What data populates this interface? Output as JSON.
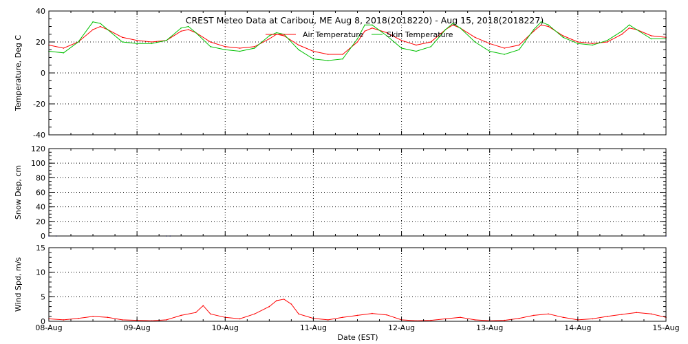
{
  "chart_data": [
    {
      "type": "line",
      "title": "CREST Meteo Data at Caribou, ME   Aug  8, 2018(2018220) - Aug 15, 2018(2018227)",
      "ylabel": "Temperature, Deg C",
      "ylim": [
        -40,
        40
      ],
      "yticks": [
        "40",
        "20",
        "0",
        "-20",
        "-40"
      ],
      "xlim": [
        "2018-08-08",
        "2018-08-15"
      ],
      "grid": true,
      "legend_position": "top-center",
      "series": [
        {
          "name": "Air Temperature",
          "color": "#ff0000",
          "x": [
            "08-Aug 00:00",
            "08-Aug 04:00",
            "08-Aug 08:00",
            "08-Aug 12:00",
            "08-Aug 14:00",
            "08-Aug 16:00",
            "08-Aug 20:00",
            "09-Aug 00:00",
            "09-Aug 04:00",
            "09-Aug 08:00",
            "09-Aug 12:00",
            "09-Aug 14:00",
            "09-Aug 16:00",
            "09-Aug 20:00",
            "10-Aug 00:00",
            "10-Aug 04:00",
            "10-Aug 08:00",
            "10-Aug 12:00",
            "10-Aug 14:00",
            "10-Aug 16:00",
            "10-Aug 20:00",
            "11-Aug 00:00",
            "11-Aug 04:00",
            "11-Aug 08:00",
            "11-Aug 12:00",
            "11-Aug 14:00",
            "11-Aug 16:00",
            "11-Aug 20:00",
            "12-Aug 00:00",
            "12-Aug 04:00",
            "12-Aug 08:00",
            "12-Aug 12:00",
            "12-Aug 14:00",
            "12-Aug 16:00",
            "12-Aug 20:00",
            "13-Aug 00:00",
            "13-Aug 04:00",
            "13-Aug 08:00",
            "13-Aug 12:00",
            "13-Aug 14:00",
            "13-Aug 16:00",
            "13-Aug 20:00",
            "14-Aug 00:00",
            "14-Aug 04:00",
            "14-Aug 08:00",
            "14-Aug 12:00",
            "14-Aug 14:00",
            "14-Aug 16:00",
            "14-Aug 20:00",
            "15-Aug 00:00"
          ],
          "y": [
            18,
            16,
            20,
            28,
            30,
            28,
            23,
            21,
            20,
            21,
            27,
            28,
            26,
            20,
            17,
            16,
            17,
            22,
            25,
            24,
            18,
            14,
            12,
            12,
            20,
            27,
            29,
            26,
            21,
            18,
            20,
            28,
            31,
            29,
            23,
            19,
            16,
            18,
            27,
            31,
            30,
            24,
            20,
            19,
            20,
            25,
            29,
            28,
            24,
            23
          ]
        },
        {
          "name": "Skin Temperature",
          "color": "#00c000",
          "x": [
            "08-Aug 00:00",
            "08-Aug 04:00",
            "08-Aug 08:00",
            "08-Aug 12:00",
            "08-Aug 14:00",
            "08-Aug 16:00",
            "08-Aug 20:00",
            "09-Aug 00:00",
            "09-Aug 04:00",
            "09-Aug 08:00",
            "09-Aug 12:00",
            "09-Aug 14:00",
            "09-Aug 16:00",
            "09-Aug 20:00",
            "10-Aug 00:00",
            "10-Aug 04:00",
            "10-Aug 08:00",
            "10-Aug 12:00",
            "10-Aug 14:00",
            "10-Aug 16:00",
            "10-Aug 20:00",
            "11-Aug 00:00",
            "11-Aug 04:00",
            "11-Aug 08:00",
            "11-Aug 12:00",
            "11-Aug 14:00",
            "11-Aug 16:00",
            "11-Aug 20:00",
            "12-Aug 00:00",
            "12-Aug 04:00",
            "12-Aug 08:00",
            "12-Aug 12:00",
            "12-Aug 14:00",
            "12-Aug 16:00",
            "12-Aug 20:00",
            "13-Aug 00:00",
            "13-Aug 04:00",
            "13-Aug 08:00",
            "13-Aug 12:00",
            "13-Aug 14:00",
            "13-Aug 16:00",
            "13-Aug 20:00",
            "14-Aug 00:00",
            "14-Aug 04:00",
            "14-Aug 08:00",
            "14-Aug 12:00",
            "14-Aug 14:00",
            "14-Aug 16:00",
            "14-Aug 20:00",
            "15-Aug 00:00"
          ],
          "y": [
            14,
            13,
            20,
            33,
            32,
            28,
            20,
            19,
            19,
            21,
            29,
            30,
            26,
            17,
            15,
            14,
            16,
            24,
            26,
            25,
            15,
            9,
            8,
            9,
            22,
            31,
            31,
            24,
            16,
            14,
            17,
            28,
            32,
            29,
            20,
            14,
            12,
            15,
            28,
            33,
            31,
            23,
            19,
            18,
            21,
            27,
            31,
            28,
            22,
            22
          ]
        }
      ]
    },
    {
      "type": "line",
      "ylabel": "Snow Dep, cm",
      "ylim": [
        0,
        120
      ],
      "yticks": [
        "120",
        "100",
        "80",
        "60",
        "40",
        "20",
        "0"
      ],
      "xlim": [
        "2018-08-08",
        "2018-08-15"
      ],
      "grid": true,
      "series": [
        {
          "color": "#0000ff",
          "x": [
            "08-Aug 00:00",
            "08-Aug 02:00",
            "09-Aug 08:00",
            "09-Aug 09:00",
            "15-Aug 00:00"
          ],
          "y": [
            0,
            0,
            0,
            0,
            0
          ]
        }
      ]
    },
    {
      "type": "line",
      "ylabel": "Wind Spd, m/s",
      "ylim": [
        0,
        15
      ],
      "yticks": [
        "15",
        "10",
        "5",
        "0"
      ],
      "xlabel": "Date (EST)",
      "xlim": [
        "2018-08-08",
        "2018-08-15"
      ],
      "grid": true,
      "series": [
        {
          "color": "#ff0000",
          "x": [
            "08-Aug 00:00",
            "08-Aug 04:00",
            "08-Aug 08:00",
            "08-Aug 12:00",
            "08-Aug 16:00",
            "08-Aug 20:00",
            "09-Aug 00:00",
            "09-Aug 04:00",
            "09-Aug 08:00",
            "09-Aug 12:00",
            "09-Aug 16:00",
            "09-Aug 18:00",
            "09-Aug 20:00",
            "10-Aug 00:00",
            "10-Aug 04:00",
            "10-Aug 08:00",
            "10-Aug 12:00",
            "10-Aug 14:00",
            "10-Aug 16:00",
            "10-Aug 18:00",
            "10-Aug 20:00",
            "11-Aug 00:00",
            "11-Aug 04:00",
            "11-Aug 08:00",
            "11-Aug 12:00",
            "11-Aug 16:00",
            "11-Aug 20:00",
            "12-Aug 00:00",
            "12-Aug 04:00",
            "12-Aug 08:00",
            "12-Aug 12:00",
            "12-Aug 16:00",
            "12-Aug 20:00",
            "13-Aug 00:00",
            "13-Aug 04:00",
            "13-Aug 08:00",
            "13-Aug 12:00",
            "13-Aug 16:00",
            "13-Aug 20:00",
            "14-Aug 00:00",
            "14-Aug 04:00",
            "14-Aug 08:00",
            "14-Aug 12:00",
            "14-Aug 16:00",
            "14-Aug 20:00",
            "15-Aug 00:00"
          ],
          "y": [
            0.5,
            0.3,
            0.6,
            1,
            0.8,
            0.3,
            0.2,
            0.1,
            0.3,
            1.2,
            1.8,
            3.2,
            1.5,
            0.8,
            0.5,
            1.5,
            3,
            4.2,
            4.5,
            3.5,
            1.5,
            0.6,
            0.3,
            0.8,
            1.2,
            1.6,
            1.3,
            0.3,
            0.1,
            0.2,
            0.5,
            0.8,
            0.3,
            0.1,
            0.2,
            0.6,
            1.2,
            1.5,
            0.8,
            0.3,
            0.5,
            1,
            1.4,
            1.8,
            1.5,
            0.8
          ]
        }
      ]
    }
  ],
  "x_tick_labels": [
    "08-Aug",
    "09-Aug",
    "10-Aug",
    "11-Aug",
    "12-Aug",
    "13-Aug",
    "14-Aug",
    "15-Aug"
  ],
  "axis_color": "#000000",
  "grid_color": "#000000"
}
